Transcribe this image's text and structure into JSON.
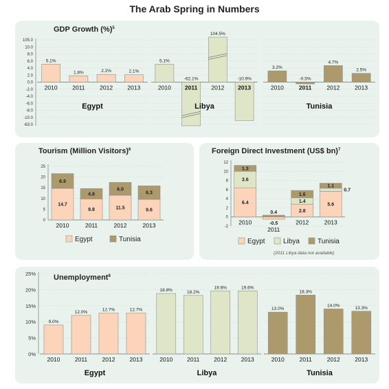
{
  "title": "The Arab Spring in Numbers",
  "colors": {
    "egypt": "#fbd4ba",
    "libya": "#dfe6c8",
    "tunisia": "#ad9a6c",
    "panel": "#e9f2ec"
  },
  "chart_data": [
    {
      "id": "gdp",
      "type": "bar",
      "title": "GDP Growth (%)",
      "title_note": "5",
      "categories": [
        "2010",
        "2011",
        "2012",
        "2013"
      ],
      "yticks": [
        "105.0",
        "10.0",
        "8.0",
        "6.0",
        "4.0",
        "2.0",
        "0.0",
        "-2.0",
        "-4.0",
        "-6.0",
        "-8.0",
        "-10.0",
        "-63.0"
      ],
      "ylim": [
        -12,
        12
      ],
      "axis_break": true,
      "series": [
        {
          "name": "Egypt",
          "color": "egypt",
          "values": [
            5.1,
            1.8,
            2.2,
            2.1
          ],
          "labels": [
            "5.1%",
            "1.8%",
            "2.2%",
            "2.1%"
          ]
        },
        {
          "name": "Libya",
          "color": "libya",
          "values": [
            5.1,
            -62.1,
            104.5,
            -10.9
          ],
          "labels": [
            "5.1%",
            "-62.1%",
            "104.5%",
            "-10.9%"
          ]
        },
        {
          "name": "Tunisia",
          "color": "tunisia",
          "values": [
            3.2,
            -0.5,
            4.7,
            2.5
          ],
          "labels": [
            "3.2%",
            "-0.5%",
            "4.7%",
            "2.5%"
          ]
        }
      ]
    },
    {
      "id": "tourism",
      "type": "bar",
      "stacked": true,
      "title": "Tourism (Million Visitors)",
      "title_note": "6",
      "categories": [
        "2010",
        "2011",
        "2012",
        "2013"
      ],
      "yticks": [
        "25",
        "20",
        "15",
        "10",
        "5",
        "0"
      ],
      "ylim": [
        0,
        25
      ],
      "series": [
        {
          "name": "Egypt",
          "color": "egypt",
          "values": [
            14.7,
            9.8,
            11.5,
            9.6
          ],
          "labels": [
            "14.7",
            "9.8",
            "11.5",
            "9.6"
          ]
        },
        {
          "name": "Tunisia",
          "color": "tunisia",
          "values": [
            6.9,
            4.8,
            6.0,
            6.3
          ],
          "labels": [
            "6.9",
            "4.8",
            "6.0",
            "6.3"
          ]
        }
      ],
      "legend": [
        "Egypt",
        "Tunisia"
      ]
    },
    {
      "id": "fdi",
      "type": "bar",
      "stacked": true,
      "title": "Foreign Direct Investment (US$ bn)",
      "title_note": "7",
      "categories": [
        "2010",
        "2011",
        "2012",
        "2013"
      ],
      "yticks": [
        "12",
        "10",
        "8",
        "6",
        "4",
        "2",
        "0",
        "-2"
      ],
      "ylim": [
        -2,
        12
      ],
      "series": [
        {
          "name": "Egypt",
          "color": "egypt",
          "values": [
            6.4,
            -0.5,
            2.8,
            5.6
          ],
          "labels": [
            "6.4",
            "-0.5",
            "2.8",
            "5.6"
          ]
        },
        {
          "name": "Libya",
          "color": "libya",
          "values": [
            3.6,
            null,
            1.4,
            0.7
          ],
          "labels": [
            "3.6",
            "",
            "1.4",
            "0.7"
          ]
        },
        {
          "name": "Tunisia",
          "color": "tunisia",
          "values": [
            1.3,
            0.4,
            1.6,
            1.1
          ],
          "labels": [
            "1.3",
            "0.4",
            "1.6",
            "1.1"
          ]
        }
      ],
      "legend": [
        "Egypt",
        "Libya",
        "Tunisia"
      ],
      "note": "(2011 Libya data not available)"
    },
    {
      "id": "unemployment",
      "type": "bar",
      "title": "Unemployment",
      "title_note": "8",
      "categories": [
        "2010",
        "2011",
        "2012",
        "2013"
      ],
      "yticks": [
        "25%",
        "20%",
        "15%",
        "10%",
        "5%",
        "0%"
      ],
      "ylim": [
        0,
        25
      ],
      "series": [
        {
          "name": "Egypt",
          "color": "egypt",
          "values": [
            9.0,
            12.0,
            12.7,
            12.7
          ],
          "labels": [
            "9.0%",
            "12.0%",
            "12.7%",
            "12.7%"
          ]
        },
        {
          "name": "Libya",
          "color": "libya",
          "values": [
            18.8,
            18.2,
            19.6,
            19.6
          ],
          "labels": [
            "18.8%",
            "18.2%",
            "19.6%",
            "19.6%"
          ]
        },
        {
          "name": "Tunisia",
          "color": "tunisia",
          "values": [
            13.0,
            18.3,
            14.0,
            13.3
          ],
          "labels": [
            "13.0%",
            "18.3%",
            "14.0%",
            "13.3%"
          ]
        }
      ]
    }
  ]
}
